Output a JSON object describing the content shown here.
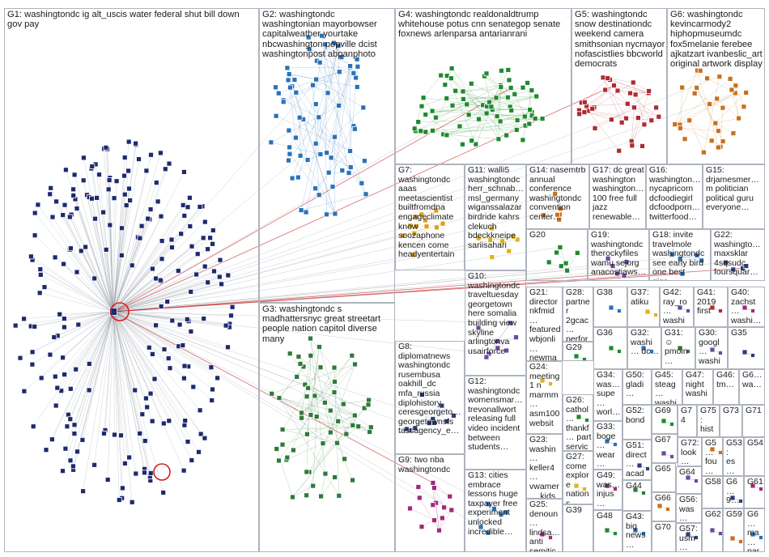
{
  "colors": {
    "g1": "#1e2a6e",
    "g2": "#2a72b8",
    "g3": "#2f7a3a",
    "g4": "#1f8a2f",
    "g5": "#b02a33",
    "g6": "#c9701c",
    "g7": "#d9a020",
    "g8": "#2a3d7a",
    "g9": "#a3287a",
    "g10": "#e0b21a",
    "g12": "#6a4aa0",
    "edge": "#9aa0a8",
    "edge_strong": "#d11f1f",
    "border": "#aeb4be"
  },
  "groups": [
    {
      "id": "G1",
      "label": "G1: washingtondc ig alt_uscis water federal shut bill down gov pay"
    },
    {
      "id": "G2",
      "label": "G2: washingtondc washingtonian mayorbowser capitalweather yourtake nbcwashington popville dcist washingtonpost abpanphoto"
    },
    {
      "id": "G3",
      "label": "G3: washingtondc s madhattersnyc great streetart people nation capitol diverse many"
    },
    {
      "id": "G4",
      "label": "G4: washingtondc realdonaldtrump whitehouse potus cnn senategop senate foxnews arlenparsa antarianrani"
    },
    {
      "id": "G5",
      "label": "G5: washingtondc snow destinationdc weekend camera smithsonian nycmayor nofascistlies bbcworld democrats"
    },
    {
      "id": "G6",
      "label": "G6: washingtondc kevincarmody2 hiphopmuseumdc fox5melanie ferebee ajkatzart ivanbeslic_art original artwork display"
    },
    {
      "id": "G7",
      "label": "G7: washingtondc aaas meetascientist builtfromdna engageclimate know soozaphone kencen come headyentertain"
    },
    {
      "id": "G8",
      "label": "G8: diplomatnews washingtondc rusembusa oakhill_dc mfa_russia diplohistory ceresgeorgeto… georgetownsfs tassagency_e…"
    },
    {
      "id": "G9",
      "label": "G9: two nba washingtondc"
    },
    {
      "id": "G10",
      "label": "G10: washingtondc traveltuesday georgetown here somalia building view skyline arlingtonva usairforce"
    },
    {
      "id": "G11",
      "label": "G11: walli5 washingtondc herr_schnab… msl_germany wiganssalazar birdride kahrs clekuch bdeckkneipe sariisahari"
    },
    {
      "id": "G12",
      "label": "G12: washingtondc womensmar… trevonallwort releasing full video incident between students…"
    },
    {
      "id": "G13",
      "label": "G13: cities embrace lessons huge taxpayer free experiment unlocked incredible…"
    },
    {
      "id": "G14",
      "label": "G14: nasemtrb annual conference washingtondc convention center…"
    },
    {
      "id": "G15",
      "label": "G15: drjamesmer… m politician political guru everyone…"
    },
    {
      "id": "G16",
      "label": "G16: washington… nycapricorn dcfoodiegirl dcfoodporn… twitterfood…"
    },
    {
      "id": "G17",
      "label": "G17: dc great washington washington… 100 free full jazz renewable…"
    },
    {
      "id": "G18",
      "label": "G18: invite travelmole washingtondc see early bird one best gigs…"
    },
    {
      "id": "G19",
      "label": "G19: washingtondc therockyfiles wamu sejorg anacostiaws…"
    },
    {
      "id": "G20",
      "label": "G20"
    },
    {
      "id": "G21",
      "label": "G21: director nkfmid… featured wbjonli… newma…"
    },
    {
      "id": "G22",
      "label": "G22: washingto… maxsklar 4sqsudc foursquar…"
    },
    {
      "id": "G23",
      "label": "G23: washin… keller4… vwamer… kids school…"
    },
    {
      "id": "G24",
      "label": "G24: meeting 1 n marmm… asm100 websit…"
    },
    {
      "id": "G25",
      "label": "G25: denoun… lindsa… anti semitic…"
    },
    {
      "id": "G26",
      "label": "G26: cathol… thankf… part servic…"
    },
    {
      "id": "G27",
      "label": "G27: come explore nations christi…"
    },
    {
      "id": "G28",
      "label": "G28: partner 2gcac… perfor… iaoip…"
    },
    {
      "id": "G29",
      "label": "G29"
    },
    {
      "id": "G30",
      "label": "G30: googl… washi…"
    },
    {
      "id": "G31",
      "label": "G31: ☺ pmoin…"
    },
    {
      "id": "G32",
      "label": "G32: washi… dc…"
    },
    {
      "id": "G33",
      "label": "G33: boge… wear… was…"
    },
    {
      "id": "G34",
      "label": "G34: was… supe… worl…"
    },
    {
      "id": "G35",
      "label": "G35"
    },
    {
      "id": "G36",
      "label": "G36"
    },
    {
      "id": "G37",
      "label": "G37: atiku"
    },
    {
      "id": "G38",
      "label": "G38"
    },
    {
      "id": "G39",
      "label": "G39"
    },
    {
      "id": "G40",
      "label": "G40: zachst… washi…"
    },
    {
      "id": "G41",
      "label": "G41: 2019 first"
    },
    {
      "id": "G42",
      "label": "G42: ray_ro… washi…"
    },
    {
      "id": "G43",
      "label": "G43: big news…"
    },
    {
      "id": "G44",
      "label": "G44"
    },
    {
      "id": "G45",
      "label": "G45: steag… washi…"
    },
    {
      "id": "G46",
      "label": "G46: tm…"
    },
    {
      "id": "G47",
      "label": "G47: night washi…"
    },
    {
      "id": "G48",
      "label": "G48"
    },
    {
      "id": "G49",
      "label": "G49: was… injus…"
    },
    {
      "id": "G50",
      "label": "G50: gladi…"
    },
    {
      "id": "G51",
      "label": "G51: direct… acad…"
    },
    {
      "id": "G52",
      "label": "G52: bond"
    },
    {
      "id": "G53",
      "label": "G53: es… ad…"
    },
    {
      "id": "G54",
      "label": "G54"
    },
    {
      "id": "G55",
      "label": "G5… fou… edi…"
    },
    {
      "id": "G56",
      "label": "G56: was…"
    },
    {
      "id": "G57",
      "label": "G57: usm…"
    },
    {
      "id": "G58",
      "label": "G58"
    },
    {
      "id": "G59",
      "label": "G59"
    },
    {
      "id": "G60",
      "label": "G6… 9…"
    },
    {
      "id": "G61",
      "label": "G61"
    },
    {
      "id": "G62",
      "label": "G62"
    },
    {
      "id": "G63",
      "label": "G6… ma… par…"
    },
    {
      "id": "G64",
      "label": "G64"
    },
    {
      "id": "G65",
      "label": "G65"
    },
    {
      "id": "G66",
      "label": "G66"
    },
    {
      "id": "G67",
      "label": "G67"
    },
    {
      "id": "G68",
      "label": "G6… wa…"
    },
    {
      "id": "G69",
      "label": "G69"
    },
    {
      "id": "G70",
      "label": "G70"
    },
    {
      "id": "G71",
      "label": "G71"
    },
    {
      "id": "G72",
      "label": "G72: look…"
    },
    {
      "id": "G73",
      "label": "G73"
    },
    {
      "id": "G74",
      "label": "G74"
    },
    {
      "id": "G75",
      "label": "G75: hist…"
    }
  ]
}
